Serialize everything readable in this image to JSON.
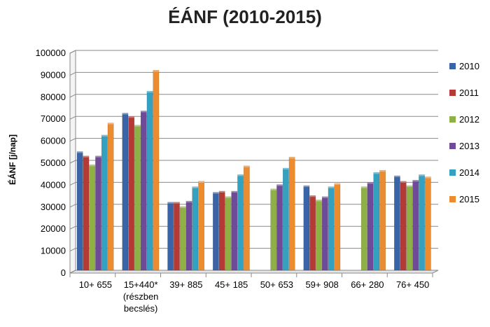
{
  "chart_data": {
    "type": "bar",
    "title": "ÉÁNF (2010-2015)",
    "xlabel": "",
    "ylabel": "ÉÁNF [j/nap]",
    "ylim": [
      0,
      100000
    ],
    "yticks": [
      "0",
      "10000",
      "20000",
      "30000",
      "40000",
      "50000",
      "60000",
      "70000",
      "80000",
      "90000",
      "100000"
    ],
    "grid": true,
    "legend_position": "right",
    "categories": [
      [
        "10+ 655"
      ],
      [
        "15+440*",
        "(részben",
        "becslés)"
      ],
      [
        "39+ 885"
      ],
      [
        "45+ 185"
      ],
      [
        "50+ 653"
      ],
      [
        "59+ 908"
      ],
      [
        "66+ 280"
      ],
      [
        "76+ 450"
      ]
    ],
    "series": [
      {
        "name": "2010",
        "color": "#3a64a8",
        "values": [
          54000,
          71500,
          31000,
          35500,
          null,
          38500,
          null,
          43000
        ]
      },
      {
        "name": "2011",
        "color": "#b53a36",
        "values": [
          52000,
          70000,
          31000,
          36000,
          null,
          34000,
          null,
          40500
        ]
      },
      {
        "name": "2012",
        "color": "#8eb044",
        "values": [
          48000,
          66000,
          29000,
          33500,
          37000,
          32000,
          38000,
          38500
        ]
      },
      {
        "name": "2013",
        "color": "#6e4a98",
        "values": [
          52000,
          72500,
          31500,
          36000,
          39000,
          33500,
          40000,
          41000
        ]
      },
      {
        "name": "2014",
        "color": "#35a1c0",
        "values": [
          61500,
          81500,
          38000,
          43500,
          46500,
          38000,
          44500,
          43500
        ]
      },
      {
        "name": "2015",
        "color": "#ec8c2e",
        "values": [
          67000,
          91000,
          40500,
          47500,
          51500,
          39500,
          45500,
          42500
        ]
      }
    ]
  }
}
